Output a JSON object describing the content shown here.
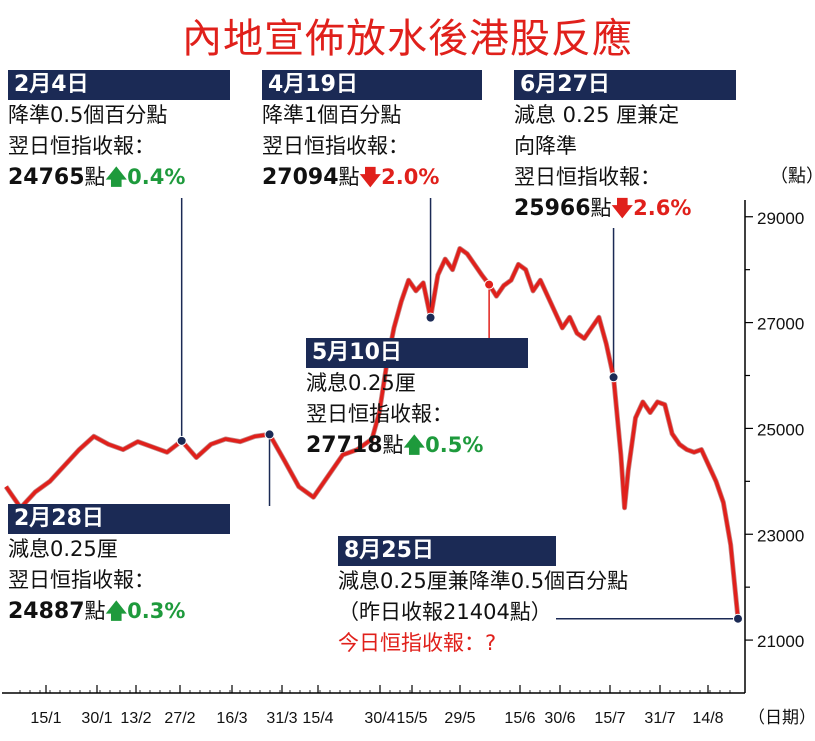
{
  "title": "內地宣佈放水後港股反應",
  "chart_data": {
    "type": "line",
    "y_unit": "（點）",
    "x_unit": "（日期）",
    "ylim": [
      20000,
      29600
    ],
    "y_ticks": [
      "29000",
      "27000",
      "25000",
      "23000",
      "21000"
    ],
    "x_ticks": [
      "15/1",
      "30/1",
      "13/2",
      "27/2",
      "16/3",
      "31/3",
      "15/4",
      "30/4",
      "15/5",
      "29/5",
      "15/6",
      "30/6",
      "15/7",
      "31/7",
      "14/8"
    ],
    "series": [
      {
        "color": "#e0201b",
        "points": [
          [
            0,
            23900
          ],
          [
            2,
            23500
          ],
          [
            4,
            23800
          ],
          [
            6,
            24000
          ],
          [
            8,
            24300
          ],
          [
            10,
            24600
          ],
          [
            12,
            24850
          ],
          [
            14,
            24700
          ],
          [
            16,
            24600
          ],
          [
            18,
            24750
          ],
          [
            20,
            24650
          ],
          [
            22,
            24550
          ],
          [
            24,
            24765
          ],
          [
            26,
            24450
          ],
          [
            28,
            24700
          ],
          [
            30,
            24800
          ],
          [
            32,
            24750
          ],
          [
            34,
            24850
          ],
          [
            36,
            24887
          ],
          [
            38,
            24400
          ],
          [
            40,
            23900
          ],
          [
            42,
            23700
          ],
          [
            44,
            24100
          ],
          [
            46,
            24500
          ],
          [
            48,
            24600
          ],
          [
            50,
            24800
          ],
          [
            51,
            25300
          ],
          [
            52,
            26200
          ],
          [
            53,
            26900
          ],
          [
            54,
            27400
          ],
          [
            55,
            27800
          ],
          [
            56,
            27600
          ],
          [
            57,
            27750
          ],
          [
            58,
            27094
          ],
          [
            59,
            27900
          ],
          [
            60,
            28200
          ],
          [
            61,
            28000
          ],
          [
            62,
            28400
          ],
          [
            63,
            28300
          ],
          [
            64,
            28100
          ],
          [
            65,
            27900
          ],
          [
            66,
            27718
          ],
          [
            67,
            27500
          ],
          [
            68,
            27700
          ],
          [
            69,
            27800
          ],
          [
            70,
            28100
          ],
          [
            71,
            28000
          ],
          [
            72,
            27600
          ],
          [
            73,
            27800
          ],
          [
            74,
            27500
          ],
          [
            75,
            27200
          ],
          [
            76,
            26900
          ],
          [
            77,
            27100
          ],
          [
            78,
            26800
          ],
          [
            79,
            26700
          ],
          [
            80,
            26900
          ],
          [
            81,
            27100
          ],
          [
            82,
            26600
          ],
          [
            83,
            25966
          ],
          [
            84,
            24500
          ],
          [
            84.5,
            23500
          ],
          [
            85,
            24200
          ],
          [
            86,
            25200
          ],
          [
            87,
            25500
          ],
          [
            88,
            25300
          ],
          [
            89,
            25500
          ],
          [
            90,
            25450
          ],
          [
            91,
            24900
          ],
          [
            92,
            24700
          ],
          [
            93,
            24600
          ],
          [
            94,
            24550
          ],
          [
            95,
            24600
          ],
          [
            96,
            24300
          ],
          [
            97,
            24000
          ],
          [
            98,
            23600
          ],
          [
            99,
            22800
          ],
          [
            100,
            21404
          ]
        ]
      }
    ],
    "events": [
      {
        "date": "2月4日",
        "index": 24,
        "value": 24765
      },
      {
        "date": "2月28日",
        "index": 36,
        "value": 24887
      },
      {
        "date": "4月19日",
        "index": 58,
        "value": 27094
      },
      {
        "date": "5月10日",
        "index": 66,
        "value": 27718
      },
      {
        "date": "6月27日",
        "index": 83,
        "value": 25966
      },
      {
        "date": "8月25日",
        "index": 100,
        "value": 21404
      }
    ]
  },
  "annotations": {
    "feb4": {
      "date": "2月4日",
      "action": "降準0.5個百分點",
      "label": "翌日恒指收報：",
      "value": "24765",
      "unit": "點",
      "change": "0.4%"
    },
    "feb28": {
      "date": "2月28日",
      "action": "減息0.25厘",
      "label": "翌日恒指收報：",
      "value": "24887",
      "unit": "點",
      "change": "0.3%"
    },
    "apr19": {
      "date": "4月19日",
      "action": "降準1個百分點",
      "label": "翌日恒指收報：",
      "value": "27094",
      "unit": "點",
      "change": "2.0%"
    },
    "may10": {
      "date": "5月10日",
      "action": "減息0.25厘",
      "label": "翌日恒指收報：",
      "value": "27718",
      "unit": "點",
      "change": "0.5%"
    },
    "jun27": {
      "date": "6月27日",
      "action1": "減息 0.25 厘兼定",
      "action2": "向降準",
      "label": "翌日恒指收報：",
      "value": "25966",
      "unit": "點",
      "change": "2.6%"
    },
    "aug25": {
      "date": "8月25日",
      "action": "減息0.25厘兼降準0.5個百分點",
      "close": "（昨日收報21404點）",
      "today": "今日恒指收報：?"
    }
  },
  "colors": {
    "line": "#e0201b",
    "header": "#1b2a55",
    "up": "#1e9a3c",
    "down": "#e0201b"
  }
}
